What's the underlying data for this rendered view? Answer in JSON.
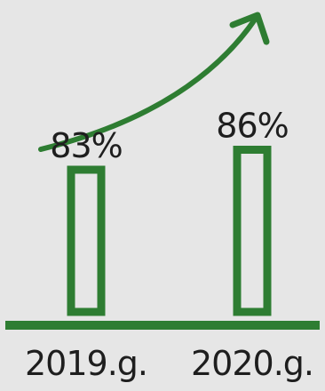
{
  "chart_data": {
    "type": "bar",
    "categories": [
      "2019.g.",
      "2020.g."
    ],
    "values": [
      83,
      86
    ],
    "value_labels": [
      "83%",
      "86%"
    ],
    "bar_style": "outlined",
    "trend_arrow": "up",
    "colors": {
      "bar": "#2e7d32",
      "baseline": "#2e7d32",
      "arrow": "#2e7d32",
      "text": "#1e1e1e",
      "background": "#e6e6e6"
    }
  }
}
